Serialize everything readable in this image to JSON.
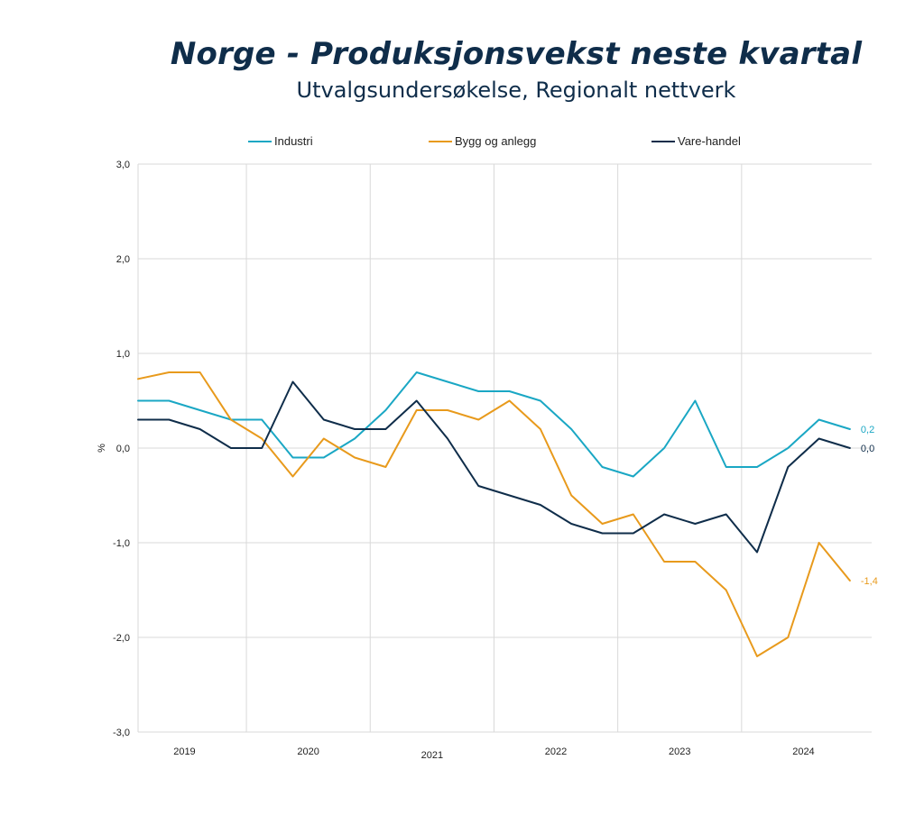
{
  "chart_data": {
    "type": "line",
    "title": "Norge - Produksjonsvekst neste kvartal",
    "subtitle": "Utvalgsundersøkelse, Regionalt nettverk",
    "ylabel": "%",
    "ylim": [
      -3.0,
      3.0
    ],
    "yticks": [
      3.0,
      2.0,
      1.0,
      0.0,
      -1.0,
      -2.0,
      -3.0
    ],
    "ytick_labels": [
      "3,0",
      "2,0",
      "1,0",
      "0,0",
      "-1,0",
      "-2,0",
      "-3,0"
    ],
    "year_labels": [
      "2019",
      "2020",
      "2021",
      "2022",
      "2023",
      "2024"
    ],
    "grid": true,
    "legend_position": "top",
    "series": [
      {
        "name": "Industri",
        "color": "#1aa7c4",
        "end_label": "0,2",
        "values": [
          0.5,
          0.5,
          0.4,
          0.3,
          0.3,
          -0.1,
          -0.1,
          0.1,
          0.4,
          0.8,
          0.7,
          0.6,
          0.6,
          0.5,
          0.2,
          -0.2,
          -0.3,
          0.0,
          0.5,
          -0.2,
          -0.2,
          0.0,
          0.3,
          0.2
        ]
      },
      {
        "name": "Bygg og anlegg",
        "color": "#e89a1c",
        "end_label": "-1,4",
        "values": [
          0.73,
          0.8,
          0.8,
          0.3,
          0.1,
          -0.3,
          0.1,
          -0.1,
          -0.2,
          0.4,
          0.4,
          0.3,
          0.5,
          0.2,
          -0.5,
          -0.8,
          -0.7,
          -1.2,
          -1.2,
          -1.5,
          -2.2,
          -2.0,
          -1.0,
          -1.4
        ]
      },
      {
        "name": "Vare-handel",
        "color": "#0f2d4a",
        "end_label": "0,0",
        "values": [
          0.3,
          0.3,
          0.2,
          0.0,
          0.0,
          0.7,
          0.3,
          0.2,
          0.2,
          0.5,
          0.1,
          -0.4,
          -0.5,
          -0.6,
          -0.8,
          -0.9,
          -0.9,
          -0.7,
          -0.8,
          -0.7,
          -1.1,
          -0.2,
          0.1,
          0.0
        ]
      }
    ]
  }
}
